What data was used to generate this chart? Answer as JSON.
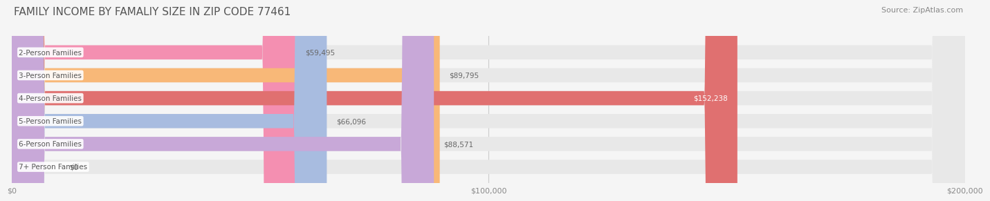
{
  "title": "FAMILY INCOME BY FAMALIY SIZE IN ZIP CODE 77461",
  "source": "Source: ZipAtlas.com",
  "categories": [
    "2-Person Families",
    "3-Person Families",
    "4-Person Families",
    "5-Person Families",
    "6-Person Families",
    "7+ Person Families"
  ],
  "values": [
    59495,
    89795,
    152238,
    66096,
    88571,
    0
  ],
  "bar_colors": [
    "#f48fb1",
    "#f8b878",
    "#e07070",
    "#a8bce0",
    "#c8a8d8",
    "#a8dce0"
  ],
  "value_labels": [
    "$59,495",
    "$89,795",
    "$152,238",
    "$66,096",
    "$88,571",
    "$0"
  ],
  "xlim": [
    0,
    200000
  ],
  "xticklabels": [
    "$0",
    "$100,000",
    "$200,000"
  ],
  "background_color": "#f5f5f5",
  "bar_background": "#e8e8e8",
  "title_fontsize": 11,
  "source_fontsize": 8,
  "bar_height": 0.62
}
